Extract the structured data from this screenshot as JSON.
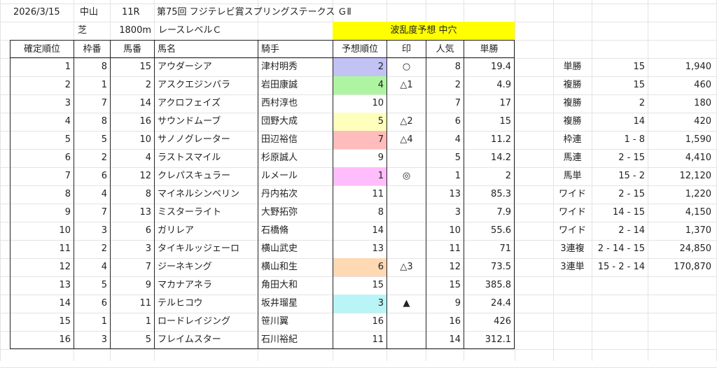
{
  "header": {
    "date": "2026/3/15",
    "venue": "中山",
    "race_no": "11R",
    "race_name": "第75回 フジテレビ賞スプリングステークス ＧⅡ",
    "surface": "芝",
    "distance": "1800m",
    "race_level": "レースレベルＣ",
    "upset_forecast": "波乱度予想 中穴"
  },
  "colors": {
    "upset_banner": "#ffff00",
    "pred_1": "#ffbdfb",
    "pred_2": "#c2c2f4",
    "pred_3": "#b9f5f7",
    "pred_4": "#aef5a2",
    "pred_5": "#ffffbd",
    "pred_6": "#ffd8b4",
    "pred_7": "#ffbcbc"
  },
  "table": {
    "columns": [
      "確定順位",
      "枠番",
      "馬番",
      "馬名",
      "騎手",
      "予想順位",
      "印",
      "人気",
      "単勝"
    ],
    "rows": [
      {
        "rank": "1",
        "waku": "8",
        "num": "15",
        "horse": "アウダーシア",
        "jockey": "津村明秀",
        "pred": "2",
        "mark": "○",
        "pop": "8",
        "odds": "19.4",
        "color": "#c2c2f4"
      },
      {
        "rank": "2",
        "waku": "1",
        "num": "2",
        "horse": "アスクエジンバラ",
        "jockey": "岩田康誠",
        "pred": "4",
        "mark": "△1",
        "pop": "2",
        "odds": "4.9",
        "color": "#aef5a2"
      },
      {
        "rank": "3",
        "waku": "7",
        "num": "14",
        "horse": "アクロフェイズ",
        "jockey": "西村淳也",
        "pred": "10",
        "mark": "",
        "pop": "7",
        "odds": "17",
        "color": ""
      },
      {
        "rank": "4",
        "waku": "8",
        "num": "16",
        "horse": "サウンドムーブ",
        "jockey": "団野大成",
        "pred": "5",
        "mark": "△2",
        "pop": "6",
        "odds": "15",
        "color": "#ffffbd"
      },
      {
        "rank": "5",
        "waku": "5",
        "num": "10",
        "horse": "サノノグレーター",
        "jockey": "田辺裕信",
        "pred": "7",
        "mark": "△4",
        "pop": "4",
        "odds": "11.2",
        "color": "#ffbcbc"
      },
      {
        "rank": "6",
        "waku": "2",
        "num": "4",
        "horse": "ラストスマイル",
        "jockey": "杉原誠人",
        "pred": "9",
        "mark": "",
        "pop": "5",
        "odds": "14.2",
        "color": ""
      },
      {
        "rank": "7",
        "waku": "6",
        "num": "12",
        "horse": "クレパスキュラー",
        "jockey": "ルメール",
        "pred": "1",
        "mark": "◎",
        "pop": "1",
        "odds": "2",
        "color": "#ffbdfb"
      },
      {
        "rank": "8",
        "waku": "4",
        "num": "8",
        "horse": "マイネルシンベリン",
        "jockey": "丹内祐次",
        "pred": "11",
        "mark": "",
        "pop": "13",
        "odds": "85.3",
        "color": ""
      },
      {
        "rank": "9",
        "waku": "7",
        "num": "13",
        "horse": "ミスターライト",
        "jockey": "大野拓弥",
        "pred": "8",
        "mark": "",
        "pop": "3",
        "odds": "7.9",
        "color": ""
      },
      {
        "rank": "10",
        "waku": "3",
        "num": "6",
        "horse": "ガリレア",
        "jockey": "石橋脩",
        "pred": "14",
        "mark": "",
        "pop": "10",
        "odds": "55.6",
        "color": ""
      },
      {
        "rank": "11",
        "waku": "2",
        "num": "3",
        "horse": "タイキルッジェーロ",
        "jockey": "横山武史",
        "pred": "13",
        "mark": "",
        "pop": "11",
        "odds": "71",
        "color": ""
      },
      {
        "rank": "12",
        "waku": "4",
        "num": "7",
        "horse": "ジーネキング",
        "jockey": "横山和生",
        "pred": "6",
        "mark": "△3",
        "pop": "12",
        "odds": "73.5",
        "color": "#ffd8b4"
      },
      {
        "rank": "13",
        "waku": "5",
        "num": "9",
        "horse": "マカナアネラ",
        "jockey": "角田大和",
        "pred": "15",
        "mark": "",
        "pop": "15",
        "odds": "385.8",
        "color": ""
      },
      {
        "rank": "14",
        "waku": "6",
        "num": "11",
        "horse": "テルヒコウ",
        "jockey": "坂井瑠星",
        "pred": "3",
        "mark": "▲",
        "pop": "9",
        "odds": "24.4",
        "color": "#b9f5f7"
      },
      {
        "rank": "15",
        "waku": "1",
        "num": "1",
        "horse": "ロードレイジング",
        "jockey": "笹川翼",
        "pred": "16",
        "mark": "",
        "pop": "16",
        "odds": "426",
        "color": ""
      },
      {
        "rank": "16",
        "waku": "3",
        "num": "5",
        "horse": "フレイムスター",
        "jockey": "石川裕紀",
        "pred": "11",
        "mark": "",
        "pop": "14",
        "odds": "312.1",
        "color": ""
      }
    ]
  },
  "payouts": [
    {
      "type": "単勝",
      "combo": "15",
      "amount": "1,940"
    },
    {
      "type": "複勝",
      "combo": "15",
      "amount": "460"
    },
    {
      "type": "複勝",
      "combo": "2",
      "amount": "180"
    },
    {
      "type": "複勝",
      "combo": "14",
      "amount": "420"
    },
    {
      "type": "枠連",
      "combo": "1 - 8",
      "amount": "1,590"
    },
    {
      "type": "馬連",
      "combo": "2 - 15",
      "amount": "4,410"
    },
    {
      "type": "馬単",
      "combo": "15 - 2",
      "amount": "12,120"
    },
    {
      "type": "ワイド",
      "combo": "2 - 15",
      "amount": "1,220"
    },
    {
      "type": "ワイド",
      "combo": "14 - 15",
      "amount": "4,150"
    },
    {
      "type": "ワイド",
      "combo": "2 - 14",
      "amount": "1,370"
    },
    {
      "type": "3連複",
      "combo": "2 - 14 - 15",
      "amount": "24,850"
    },
    {
      "type": "3連単",
      "combo": "15 - 2 - 14",
      "amount": "170,870"
    }
  ]
}
